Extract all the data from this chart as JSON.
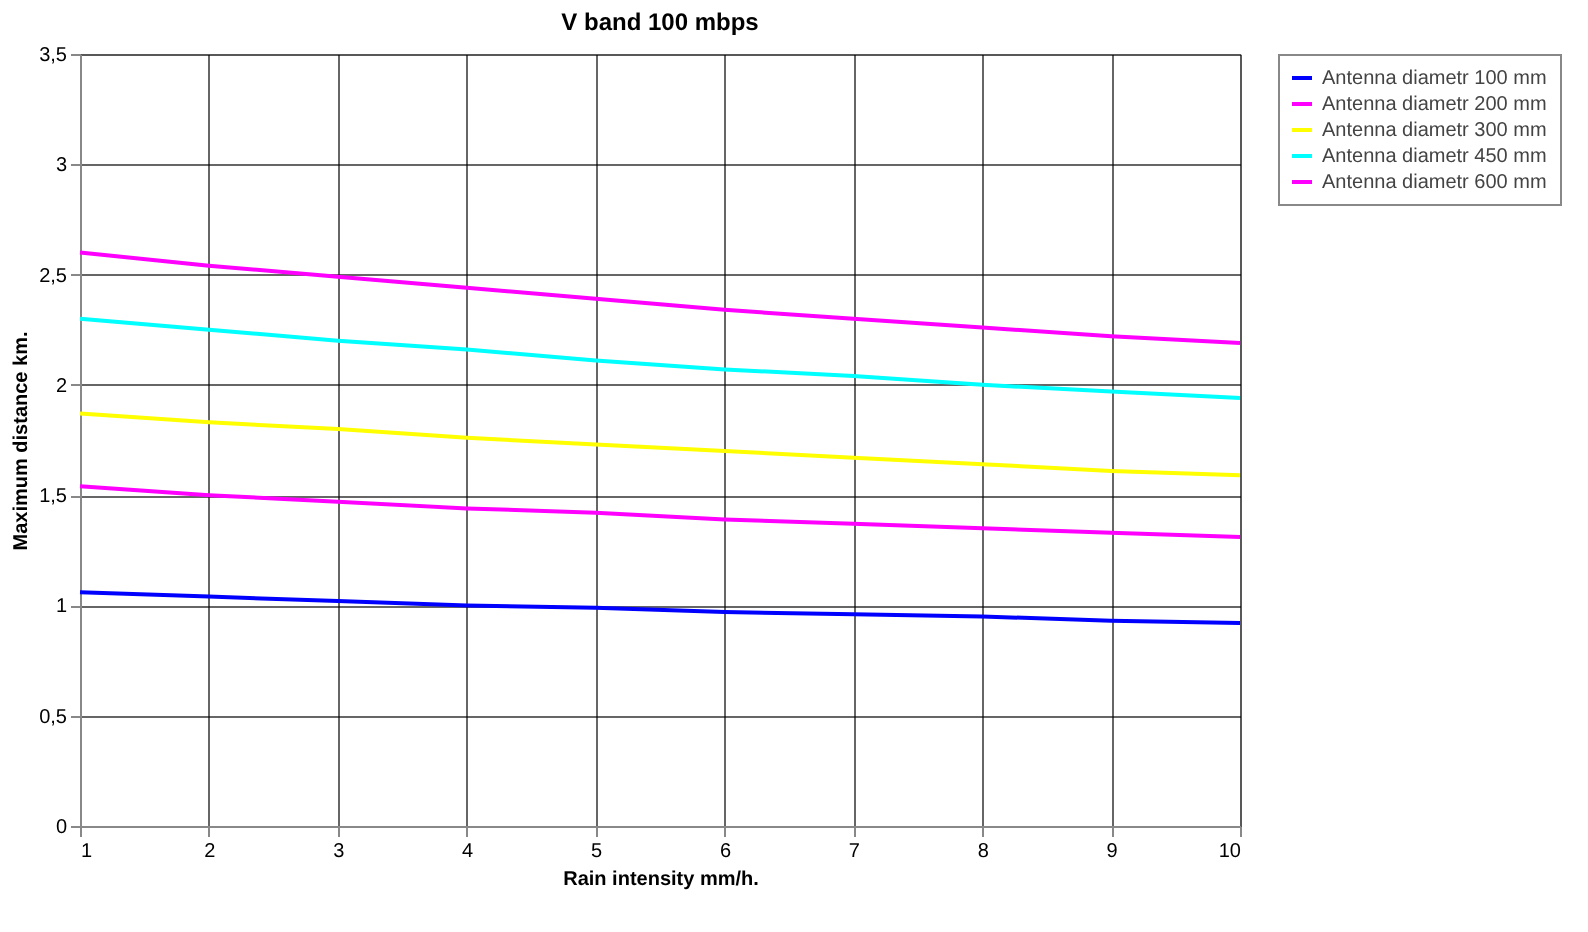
{
  "chart_data": {
    "type": "line",
    "title": "V band 100 mbps",
    "xlabel": "Rain intensity mm/h.",
    "ylabel": "Maximum distance km.",
    "x": [
      1,
      2,
      3,
      4,
      5,
      6,
      7,
      8,
      9,
      10
    ],
    "series": [
      {
        "name": "Antenna diametr 100 mm",
        "color": "#0000ff",
        "values": [
          1.06,
          1.04,
          1.02,
          1.0,
          0.99,
          0.97,
          0.96,
          0.95,
          0.93,
          0.92
        ]
      },
      {
        "name": "Antenna diametr 200 mm",
        "color": "#ff00ff",
        "values": [
          1.54,
          1.5,
          1.47,
          1.44,
          1.42,
          1.39,
          1.37,
          1.35,
          1.33,
          1.31
        ]
      },
      {
        "name": "Antenna diametr 300 mm",
        "color": "#ffff00",
        "values": [
          1.87,
          1.83,
          1.8,
          1.76,
          1.73,
          1.7,
          1.67,
          1.64,
          1.61,
          1.59
        ]
      },
      {
        "name": "Antenna diametr 450 mm",
        "color": "#00ffff",
        "values": [
          2.3,
          2.25,
          2.2,
          2.16,
          2.11,
          2.07,
          2.04,
          2.0,
          1.97,
          1.94
        ]
      },
      {
        "name": "Antenna diametr 600 mm",
        "color": "#ff00ff",
        "values": [
          2.6,
          2.54,
          2.49,
          2.44,
          2.39,
          2.34,
          2.3,
          2.26,
          2.22,
          2.19
        ]
      }
    ],
    "xlim": [
      1,
      10
    ],
    "xticks": [
      1,
      2,
      3,
      4,
      5,
      6,
      7,
      8,
      9,
      10
    ],
    "ylim": [
      0,
      3.5
    ],
    "yticks": [
      0,
      {
        "value": 0.5,
        "label": "0,5"
      },
      1,
      {
        "value": 1.5,
        "label": "1,5"
      },
      2,
      {
        "value": 2.5,
        "label": "2,5"
      },
      3,
      {
        "value": 3.5,
        "label": "3,5"
      }
    ],
    "grid": true,
    "legend": "right",
    "marker": "none",
    "line_style": "solid"
  }
}
